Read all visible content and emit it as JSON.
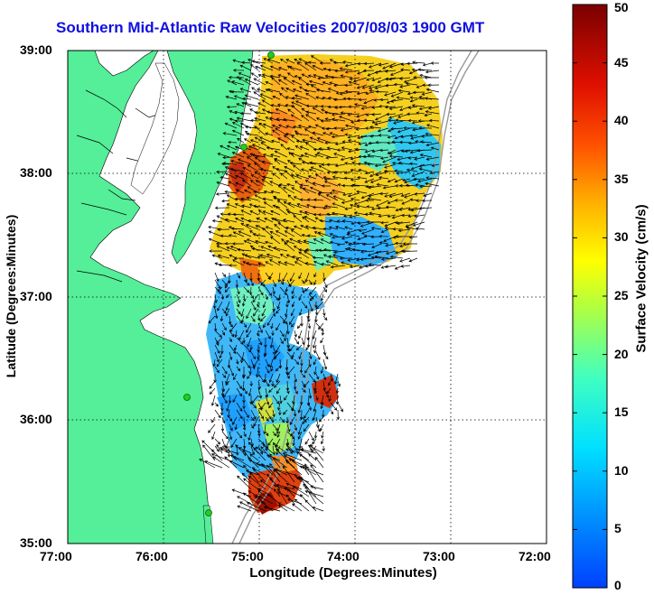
{
  "title": "Southern Mid-Atlantic Raw Velocities 2007/08/03 1900 GMT",
  "xlabel": "Longitude (Degrees:Minutes)",
  "ylabel": "Latitude (Degrees:Minutes)",
  "colorbar": {
    "label": "Surface Velocity (cm/s)",
    "min": 0,
    "max": 50,
    "ticks": [
      "0",
      "5",
      "10",
      "15",
      "20",
      "25",
      "30",
      "35",
      "40",
      "45",
      "50"
    ]
  },
  "axes": {
    "x_ticks": [
      "77:00",
      "76:00",
      "75:00",
      "74:00",
      "73:00",
      "72:00"
    ],
    "y_ticks": [
      "39:00",
      "38:00",
      "37:00",
      "36:00",
      "35:00"
    ],
    "x_range": [
      -77,
      -72
    ],
    "y_range": [
      35,
      39
    ],
    "grid": "dotted"
  },
  "colors": {
    "land": "#55ee99",
    "title": "#1010e0",
    "site_marker": "#22cc22"
  }
}
